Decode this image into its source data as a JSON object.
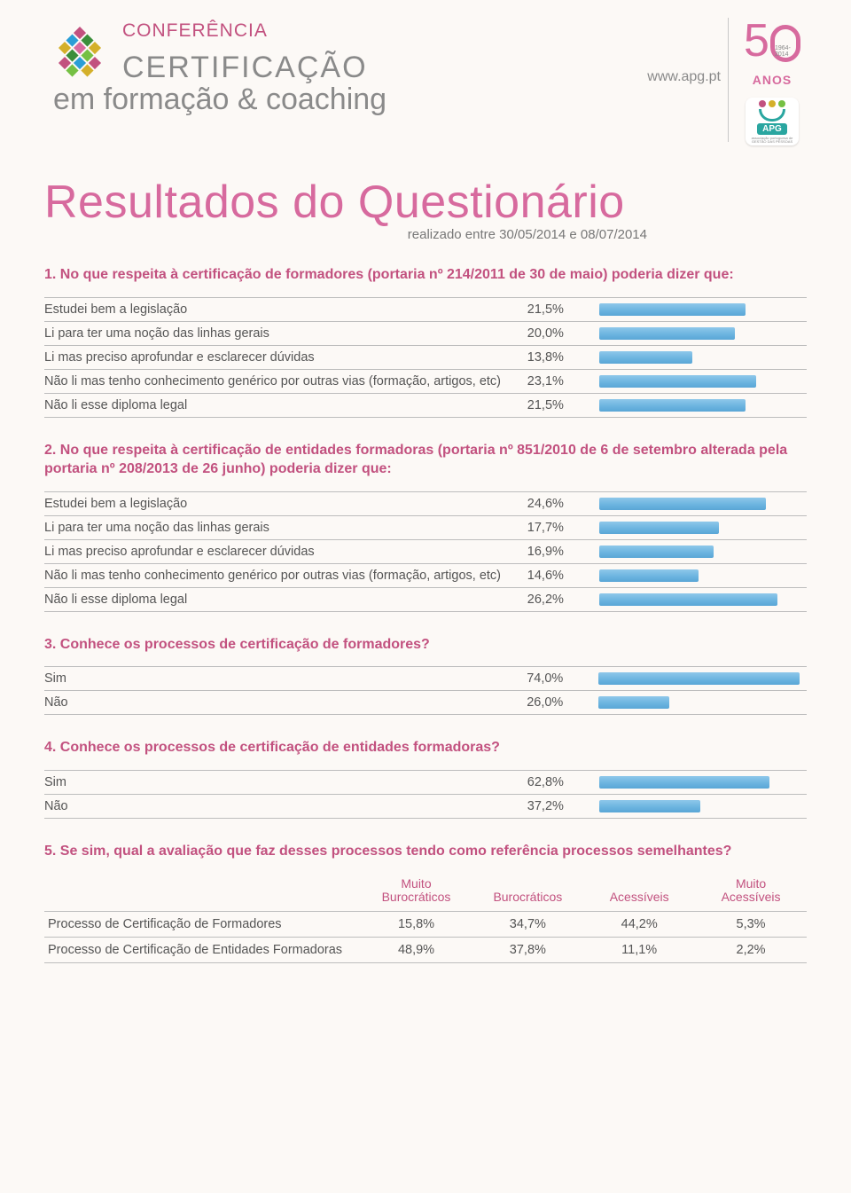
{
  "header": {
    "conferencia": "CONFERÊNCIA",
    "certificacao": "CERTIFICAÇÃO",
    "subtitulo": "em formação & coaching",
    "url": "www.apg.pt",
    "fifty_years": "1964-2014",
    "anos": "ANOS",
    "apg": "APG",
    "apg_sub": "associação portuguesa de\nGESTÃO DAS PESSOAS"
  },
  "title": "Resultados do Questionário",
  "period": "realizado entre 30/05/2014 e 08/07/2014",
  "q1": {
    "text": "1. No que respeita à certificação de formadores (portaria nº 214/2011 de 30 de maio) poderia dizer que:",
    "bar_max": 30,
    "rows": [
      {
        "label": "Estudei bem a legislação",
        "value": "21,5%",
        "pct": 21.5
      },
      {
        "label": "Li para ter uma noção das linhas gerais",
        "value": "20,0%",
        "pct": 20.0
      },
      {
        "label": "Li mas preciso aprofundar e esclarecer dúvidas",
        "value": "13,8%",
        "pct": 13.8
      },
      {
        "label": "Não li mas tenho conhecimento genérico por outras vias (formação, artigos, etc)",
        "value": "23,1%",
        "pct": 23.1
      },
      {
        "label": "Não li esse diploma legal",
        "value": "21,5%",
        "pct": 21.5
      }
    ]
  },
  "q2": {
    "text": "2. No que respeita à certificação de entidades formadoras (portaria nº 851/2010 de 6 de setembro alterada pela portaria nº 208/2013 de 26 junho) poderia dizer que:",
    "bar_max": 30,
    "rows": [
      {
        "label": "Estudei bem a legislação",
        "value": "24,6%",
        "pct": 24.6
      },
      {
        "label": "Li para ter uma noção das linhas gerais",
        "value": "17,7%",
        "pct": 17.7
      },
      {
        "label": "Li mas preciso aprofundar e esclarecer dúvidas",
        "value": "16,9%",
        "pct": 16.9
      },
      {
        "label": "Não li mas tenho conhecimento genérico por outras vias (formação, artigos, etc)",
        "value": "14,6%",
        "pct": 14.6
      },
      {
        "label": "Não li esse diploma legal",
        "value": "26,2%",
        "pct": 26.2
      }
    ]
  },
  "q3": {
    "text": "3. Conhece os processos de certificação de formadores?",
    "bar_max": 75,
    "rows": [
      {
        "label": "Sim",
        "value": "74,0%",
        "pct": 74.0
      },
      {
        "label": "Não",
        "value": "26,0%",
        "pct": 26.0
      }
    ]
  },
  "q4": {
    "text": "4. Conhece os processos de certificação de entidades formadoras?",
    "bar_max": 75,
    "rows": [
      {
        "label": "Sim",
        "value": "62,8%",
        "pct": 62.8
      },
      {
        "label": "Não",
        "value": "37,2%",
        "pct": 37.2
      }
    ]
  },
  "q5": {
    "text": "5. Se sim, qual a avaliação que faz desses processos tendo como referência processos semelhantes?",
    "columns": [
      {
        "l1": "Muito",
        "l2": "Burocráticos"
      },
      {
        "l1": "",
        "l2": "Burocráticos"
      },
      {
        "l1": "",
        "l2": "Acessíveis"
      },
      {
        "l1": "Muito",
        "l2": "Acessíveis"
      }
    ],
    "rows": [
      {
        "label": "Processo de Certificação de Formadores",
        "c": [
          "15,8%",
          "34,7%",
          "44,2%",
          "5,3%"
        ]
      },
      {
        "label": "Processo de Certificação de Entidades Formadoras",
        "c": [
          "48,9%",
          "37,8%",
          "11,1%",
          "2,2%"
        ]
      }
    ]
  },
  "style": {
    "bar_color_top": "#8ec7ea",
    "bar_color_bottom": "#5aa6d6",
    "accent_pink": "#c2517f",
    "title_pink": "#d76a9e",
    "text_color": "#555",
    "border_color": "#bdbdbd",
    "background": "#fcf9f6"
  }
}
